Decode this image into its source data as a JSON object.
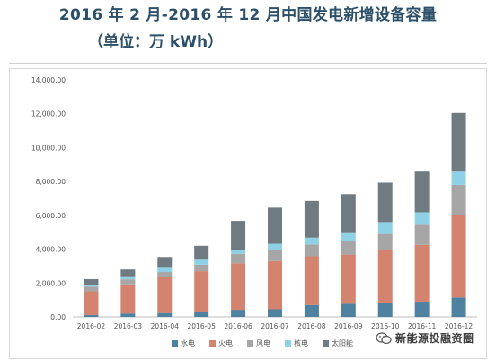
{
  "header": {
    "title": "2016 年 2 月-2016 年 12 月中国发电新增设备容量",
    "subtitle": "（单位：万 kWh）"
  },
  "watermark": {
    "text": "新能源投融资圈"
  },
  "chart_data": {
    "type": "bar",
    "stacked": true,
    "categories": [
      "2016-02",
      "2016-03",
      "2016-04",
      "2016-05",
      "2016-06",
      "2016-07",
      "2016-08",
      "2016-09",
      "2016-10",
      "2016-11",
      "2016-12"
    ],
    "series": [
      {
        "name": "水电",
        "color": "#4f81a0",
        "values": [
          110,
          200,
          230,
          300,
          420,
          450,
          700,
          780,
          850,
          900,
          1150
        ]
      },
      {
        "name": "火电",
        "color": "#d4836e",
        "values": [
          1400,
          1720,
          2120,
          2400,
          2750,
          2850,
          2880,
          2900,
          3100,
          3350,
          4850
        ]
      },
      {
        "name": "风电",
        "color": "#a6a6a6",
        "values": [
          280,
          300,
          300,
          380,
          550,
          640,
          700,
          800,
          950,
          1200,
          1800
        ]
      },
      {
        "name": "核电",
        "color": "#8ed1e6",
        "values": [
          110,
          180,
          300,
          300,
          200,
          380,
          400,
          520,
          700,
          730,
          780
        ]
      },
      {
        "name": "太阳能",
        "color": "#6f7b80",
        "values": [
          330,
          400,
          590,
          820,
          1750,
          2130,
          2170,
          2250,
          2330,
          2400,
          3470
        ]
      }
    ],
    "yticks": [
      "0.00",
      "2,000.00",
      "4,000.00",
      "6,000.00",
      "8,000.00",
      "10,000.00",
      "12,000.00",
      "14,000.00"
    ],
    "ylim": [
      0,
      14000
    ],
    "ystep": 2000,
    "gridlines": false,
    "legend": "bottom"
  }
}
